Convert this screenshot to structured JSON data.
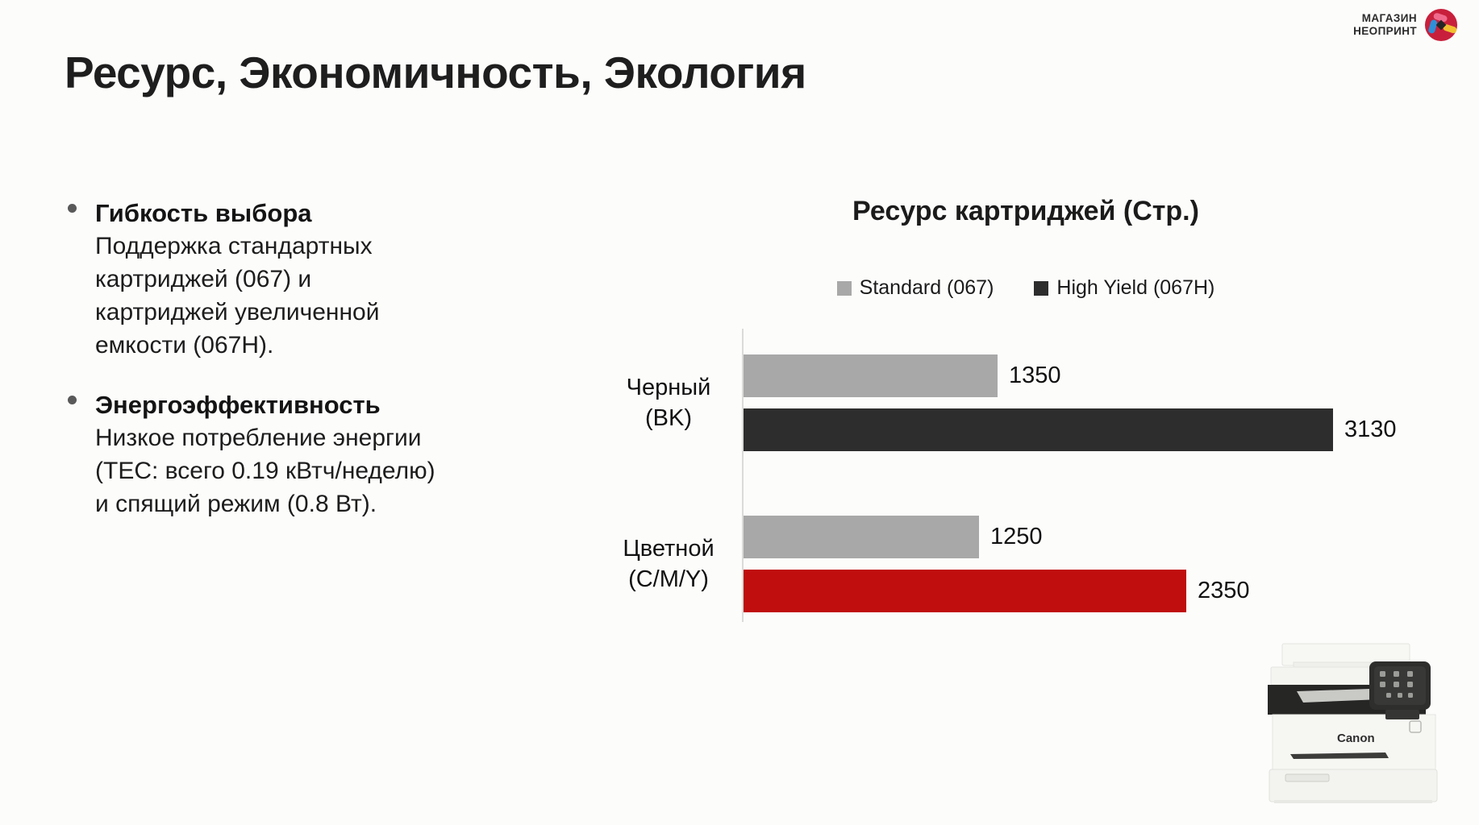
{
  "brand": {
    "line1": "МАГАЗИН",
    "line2": "НЕОПРИНТ"
  },
  "title": "Ресурс, Экономичность, Экология",
  "bullets": [
    {
      "heading": "Гибкость выбора",
      "lines": [
        "Поддержка стандартных",
        "картриджей (067) и",
        "картриджей увеличенной",
        "емкости (067H)."
      ]
    },
    {
      "heading": "Энергоэффективность",
      "lines": [
        "Низкое потребление энергии",
        "(TEC: всего 0.19 кВтч/неделю)",
        "и спящий режим (0.8 Вт)."
      ]
    }
  ],
  "chart_data": {
    "type": "bar",
    "orientation": "horizontal",
    "title": "Ресурс картриджей (Стр.)",
    "categories": [
      "Черный (BK)",
      "Цветной (C/M/Y)"
    ],
    "category_label_lines": [
      [
        "Черный",
        "(BK)"
      ],
      [
        "Цветной",
        "(C/M/Y)"
      ]
    ],
    "series": [
      {
        "name": "Standard (067)",
        "values": [
          1350,
          1250
        ],
        "colors": [
          "#a8a8a8",
          "#a8a8a8"
        ],
        "legend_color": "#a8a8a8"
      },
      {
        "name": "High Yield (067H)",
        "values": [
          3130,
          2350
        ],
        "colors": [
          "#2d2d2d",
          "#c00d0d"
        ],
        "legend_color": "#2d2d2d"
      }
    ],
    "xlim": [
      0,
      3130
    ],
    "grid": false,
    "legend_position": "top",
    "value_labels": true,
    "axis_color": "#dbdbd8"
  },
  "printer": {
    "brand": "Canon"
  },
  "colors": {
    "background": "#fcfcfb",
    "text": "#1c1c1c",
    "bar_gray": "#a8a8a8",
    "bar_dark": "#2d2d2d",
    "bar_red": "#c00d0d",
    "logo_circle": "#c8203c"
  }
}
